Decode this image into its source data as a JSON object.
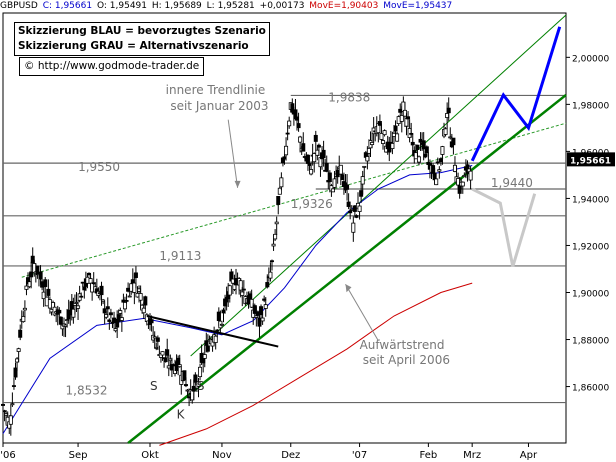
{
  "header": {
    "symbol": "GBPUSD",
    "close": "C: 1,95661",
    "open": "O: 1,95491",
    "high": "H: 1,95689",
    "low": "L: 1,95281",
    "change": "+0,00173",
    "ma1": "MovE=1,90403",
    "ma2": "MovE=1,95437",
    "colors": {
      "symbol": "#000000",
      "values": "#0000cc",
      "ma1": "#cc0000",
      "ma2": "#0000cc"
    }
  },
  "legend_box": {
    "line1": "Skizzierung BLAU = bevorzugtes Szenario",
    "line2": "Skizzierung GRAU = Alternativszenario"
  },
  "source": {
    "text": "© http://www.godmode-trader.de"
  },
  "last_price_tag": "1,95661",
  "chart_data": {
    "type": "candlestick",
    "title": "",
    "xlabel": "",
    "ylabel": "",
    "ylim": [
      1.836,
      2.018
    ],
    "grid": false,
    "x_ticks": [
      "'06",
      "Sep",
      "Okt",
      "Nov",
      "Dez",
      "'07",
      "Feb",
      "Mrz",
      "Apr"
    ],
    "y_ticks": [
      "1,86000",
      "1,88000",
      "1,90000",
      "1,92000",
      "1,94000",
      "1,96000",
      "1,98000",
      "2,00000"
    ],
    "y_tick_values": [
      1.86,
      1.88,
      1.9,
      1.92,
      1.94,
      1.96,
      1.98,
      2.0
    ],
    "price_path": [
      [
        0,
        1.852
      ],
      [
        4,
        1.844
      ],
      [
        8,
        1.866
      ],
      [
        12,
        1.888
      ],
      [
        16,
        1.904
      ],
      [
        20,
        1.912
      ],
      [
        24,
        1.906
      ],
      [
        28,
        1.9
      ],
      [
        32,
        1.894
      ],
      [
        36,
        1.89
      ],
      [
        40,
        1.886
      ],
      [
        44,
        1.892
      ],
      [
        48,
        1.897
      ],
      [
        52,
        1.903
      ],
      [
        56,
        1.906
      ],
      [
        60,
        1.902
      ],
      [
        64,
        1.895
      ],
      [
        68,
        1.889
      ],
      [
        72,
        1.884
      ],
      [
        76,
        1.892
      ],
      [
        80,
        1.9
      ],
      [
        84,
        1.906
      ],
      [
        88,
        1.899
      ],
      [
        92,
        1.893
      ],
      [
        96,
        1.882
      ],
      [
        100,
        1.876
      ],
      [
        104,
        1.871
      ],
      [
        108,
        1.869
      ],
      [
        112,
        1.87
      ],
      [
        116,
        1.864
      ],
      [
        120,
        1.856
      ],
      [
        124,
        1.86
      ],
      [
        128,
        1.871
      ],
      [
        132,
        1.88
      ],
      [
        136,
        1.884
      ],
      [
        140,
        1.888
      ],
      [
        144,
        1.898
      ],
      [
        148,
        1.906
      ],
      [
        152,
        1.904
      ],
      [
        156,
        1.898
      ],
      [
        160,
        1.893
      ],
      [
        164,
        1.887
      ],
      [
        168,
        1.897
      ],
      [
        172,
        1.912
      ],
      [
        176,
        1.936
      ],
      [
        180,
        1.958
      ],
      [
        184,
        1.98
      ],
      [
        188,
        1.972
      ],
      [
        192,
        1.96
      ],
      [
        196,
        1.952
      ],
      [
        200,
        1.962
      ],
      [
        204,
        1.957
      ],
      [
        208,
        1.95
      ],
      [
        212,
        1.946
      ],
      [
        216,
        1.952
      ],
      [
        220,
        1.942
      ],
      [
        224,
        1.93
      ],
      [
        228,
        1.938
      ],
      [
        232,
        1.955
      ],
      [
        236,
        1.966
      ],
      [
        240,
        1.972
      ],
      [
        244,
        1.966
      ],
      [
        248,
        1.96
      ],
      [
        252,
        1.97
      ],
      [
        256,
        1.98
      ],
      [
        260,
        1.968
      ],
      [
        264,
        1.958
      ],
      [
        268,
        1.962
      ],
      [
        272,
        1.957
      ],
      [
        276,
        1.95
      ],
      [
        280,
        1.955
      ],
      [
        284,
        1.978
      ],
      [
        288,
        1.96
      ],
      [
        292,
        1.944
      ],
      [
        296,
        1.95
      ],
      [
        300,
        1.956
      ]
    ],
    "ma_blue": [
      [
        0,
        1.84
      ],
      [
        30,
        1.872
      ],
      [
        60,
        1.886
      ],
      [
        90,
        1.889
      ],
      [
        120,
        1.885
      ],
      [
        140,
        1.882
      ],
      [
        160,
        1.888
      ],
      [
        180,
        1.902
      ],
      [
        200,
        1.92
      ],
      [
        220,
        1.934
      ],
      [
        240,
        1.944
      ],
      [
        260,
        1.95
      ],
      [
        280,
        1.951
      ],
      [
        300,
        1.954
      ]
    ],
    "ma_red": [
      [
        100,
        1.835
      ],
      [
        130,
        1.842
      ],
      [
        160,
        1.852
      ],
      [
        190,
        1.864
      ],
      [
        220,
        1.876
      ],
      [
        250,
        1.89
      ],
      [
        280,
        1.9
      ],
      [
        300,
        1.904
      ]
    ],
    "horizontal_levels": [
      {
        "label": "1,9838",
        "value": 1.9838
      },
      {
        "label": "1,9550",
        "value": 1.955
      },
      {
        "label": "1,9440",
        "value": 1.944
      },
      {
        "label": "1,9326",
        "value": 1.9326
      },
      {
        "label": "1,9113",
        "value": 1.9113
      },
      {
        "label": "1,8532",
        "value": 1.8532
      }
    ],
    "annotations": {
      "trendline_label": [
        "innere Trendlinie",
        "seit Januar 2003"
      ],
      "uptrend_label": [
        "Aufwärtstrend",
        "seit April 2006"
      ],
      "pattern_labels": [
        "S",
        "K",
        "S"
      ]
    },
    "scenario_blue": [
      [
        300,
        1.956
      ],
      [
        320,
        1.984
      ],
      [
        336,
        1.97
      ],
      [
        356,
        2.013
      ]
    ],
    "scenario_gray": [
      [
        300,
        1.944
      ],
      [
        318,
        1.938
      ],
      [
        326,
        1.911
      ],
      [
        340,
        1.942
      ]
    ],
    "colors": {
      "up_trend": "#008000",
      "blue_scenario": "#0000ff",
      "gray_scenario": "#c8c8c8",
      "ma_blue": "#0000cc",
      "ma_red": "#cc0000",
      "levels": "#555555"
    }
  }
}
